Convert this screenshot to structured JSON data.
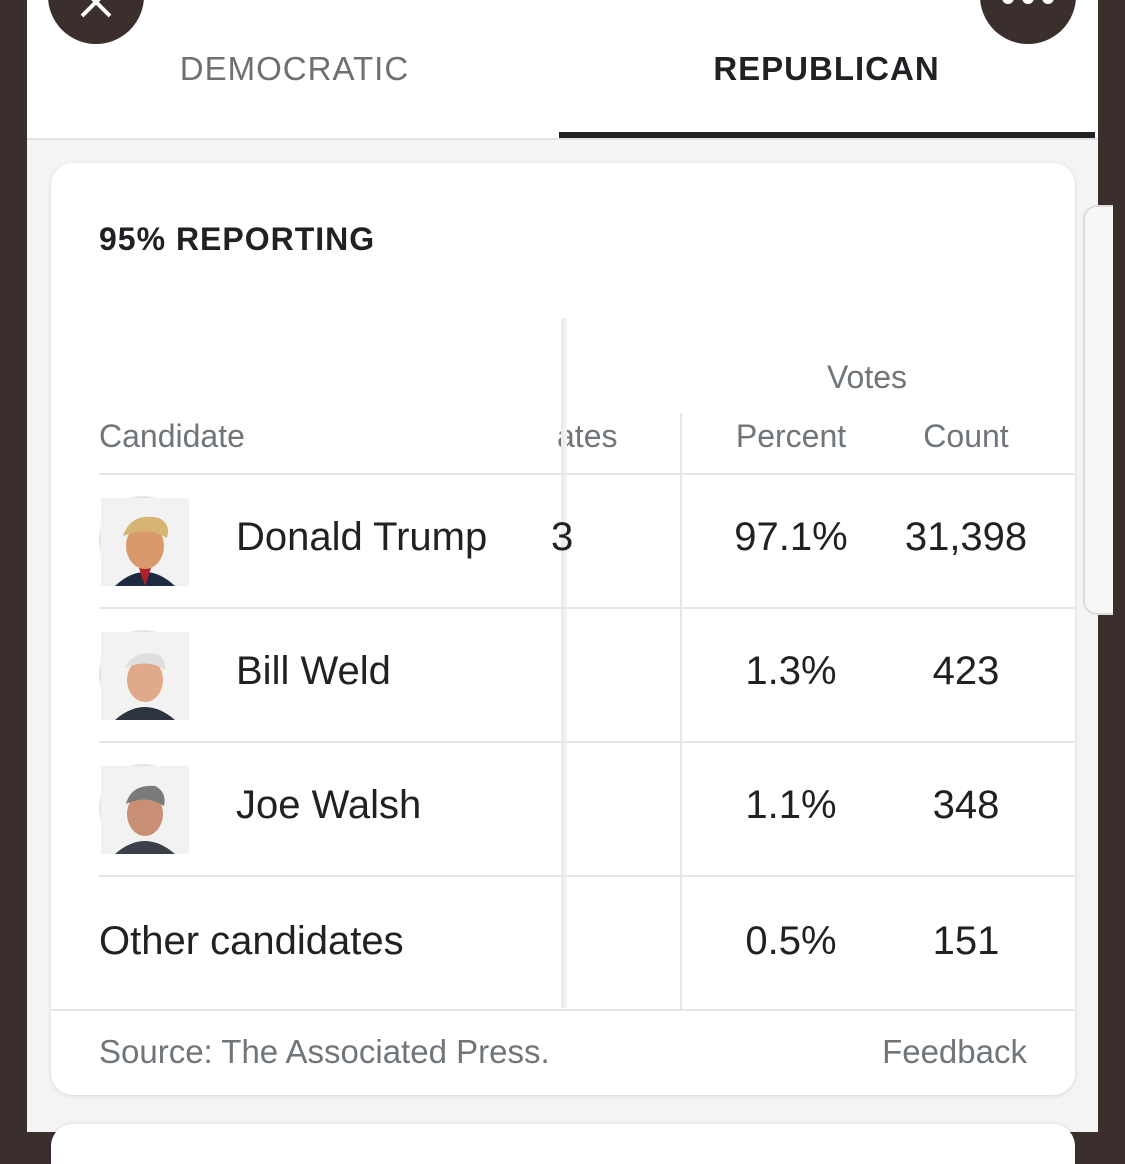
{
  "tabs": [
    {
      "label": "DEMOCRATIC",
      "active": false
    },
    {
      "label": "REPUBLICAN",
      "active": true
    }
  ],
  "top_buttons": {
    "close_icon": "close-icon",
    "more_icon": "more-horizontal-icon"
  },
  "results": {
    "reporting": "95% REPORTING",
    "votes_header": "Votes",
    "columns": {
      "candidate": "Candidate",
      "delegates": "ates",
      "percent": "Percent",
      "count": "Count"
    },
    "rows": [
      {
        "name": "Donald Trump",
        "delegates_partial": "3",
        "percent": "97.1%",
        "count": "31,398"
      },
      {
        "name": "Bill Weld",
        "delegates_partial": "",
        "percent": "1.3%",
        "count": "423"
      },
      {
        "name": "Joe Walsh",
        "delegates_partial": "",
        "percent": "1.1%",
        "count": "348"
      }
    ],
    "other": {
      "name": "Other candidates",
      "percent": "0.5%",
      "count": "151"
    },
    "source": "Source: The Associated Press.",
    "feedback": "Feedback"
  },
  "colors": {
    "accent": "#202124",
    "muted": "#70757a",
    "border": "#e6e6e6",
    "background": "#3a2f2c"
  }
}
